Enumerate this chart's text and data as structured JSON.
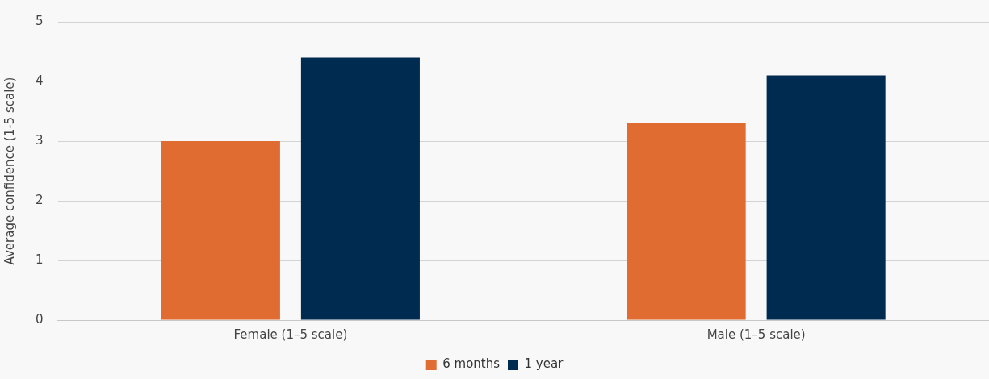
{
  "chart_data": {
    "type": "bar",
    "ylabel": "Average confidence (1-5 scale)",
    "categories": [
      "Female (1–5 scale)",
      "Male (1–5 scale)"
    ],
    "series": [
      {
        "name": "6 months",
        "color": "#e06c32",
        "values": [
          3.0,
          3.3
        ]
      },
      {
        "name": "1 year",
        "color": "#002b50",
        "values": [
          4.4,
          4.1
        ]
      }
    ],
    "ylim": [
      0,
      5
    ],
    "yticks": [
      0,
      1,
      2,
      3,
      4,
      5
    ],
    "grid": "y",
    "legend": "bottom"
  }
}
